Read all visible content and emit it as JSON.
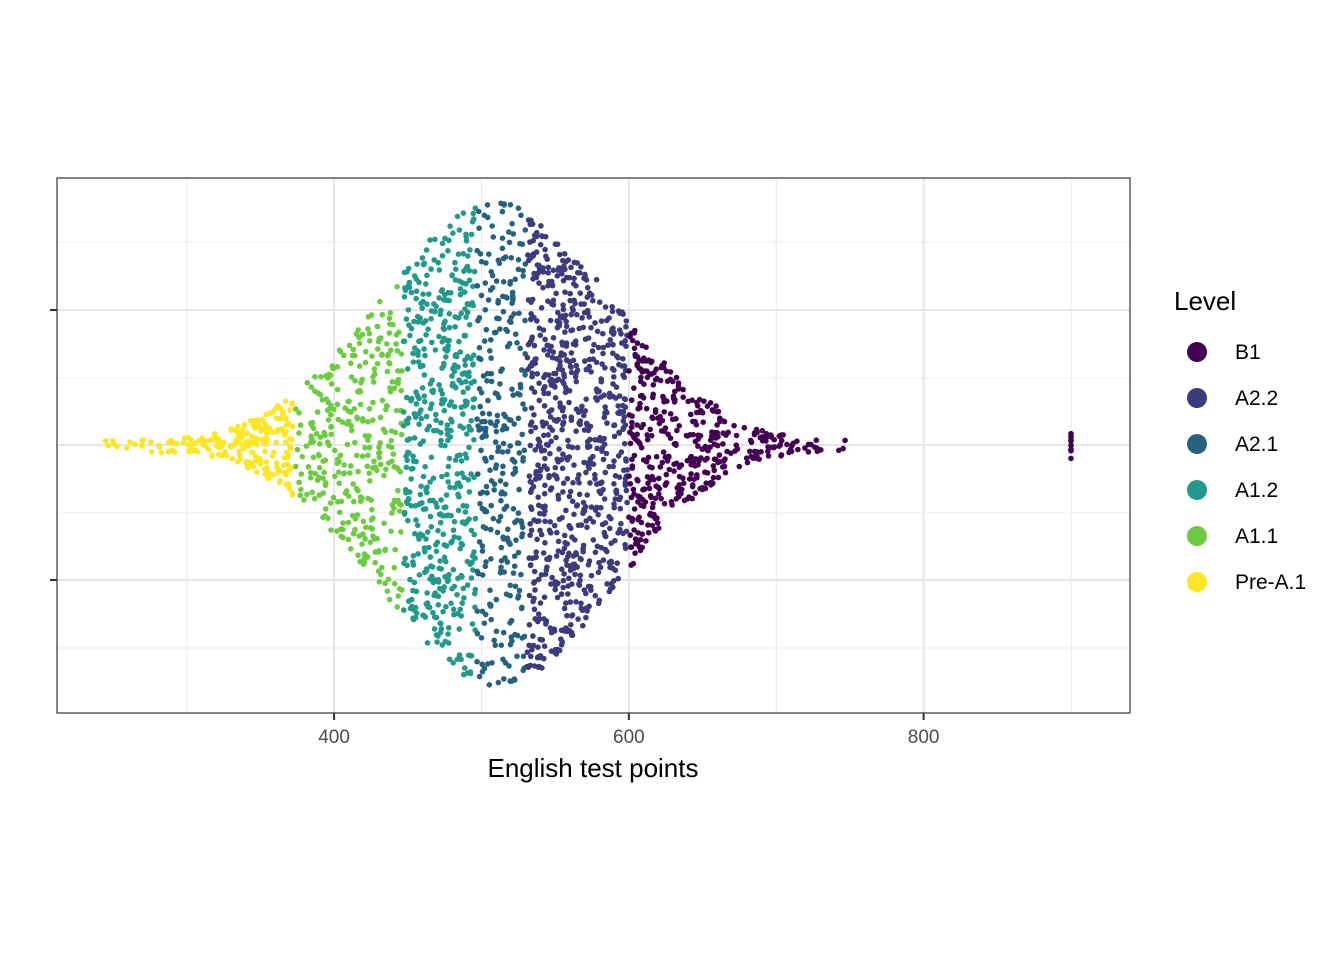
{
  "chart_data": {
    "type": "scatter",
    "subtype": "beeswarm",
    "xlabel": "English test points",
    "ylabel": "",
    "xlim": [
      212,
      940
    ],
    "x_ticks": [
      400,
      600,
      800
    ],
    "x_minor_ticks": [
      300,
      500,
      700,
      900
    ],
    "y_ticks_labels": [
      "",
      ""
    ],
    "grid": true,
    "legend": {
      "title": "Level",
      "position": "right",
      "entries": [
        {
          "name": "B1",
          "color": "#440154"
        },
        {
          "name": "A2.2",
          "color": "#3B3B7E"
        },
        {
          "name": "A2.1",
          "color": "#26627F"
        },
        {
          "name": "A1.2",
          "color": "#22998A"
        },
        {
          "name": "A1.1",
          "color": "#6CCB40"
        },
        {
          "name": "Pre-A.1",
          "color": "#FDE725"
        }
      ]
    },
    "series": [
      {
        "name": "Pre-A.1",
        "range": [
          240,
          372
        ],
        "count": 220
      },
      {
        "name": "A1.1",
        "range": [
          374,
          446
        ],
        "count": 330
      },
      {
        "name": "A1.2",
        "range": [
          447,
          496
        ],
        "count": 520
      },
      {
        "name": "A2.1",
        "range": [
          497,
          530
        ],
        "count": 300
      },
      {
        "name": "A2.2",
        "range": [
          531,
          599
        ],
        "count": 760
      },
      {
        "name": "B1",
        "range": [
          600,
          748
        ],
        "count": 420
      },
      {
        "name": "B1",
        "range": [
          900,
          900
        ],
        "count": 10
      }
    ]
  }
}
